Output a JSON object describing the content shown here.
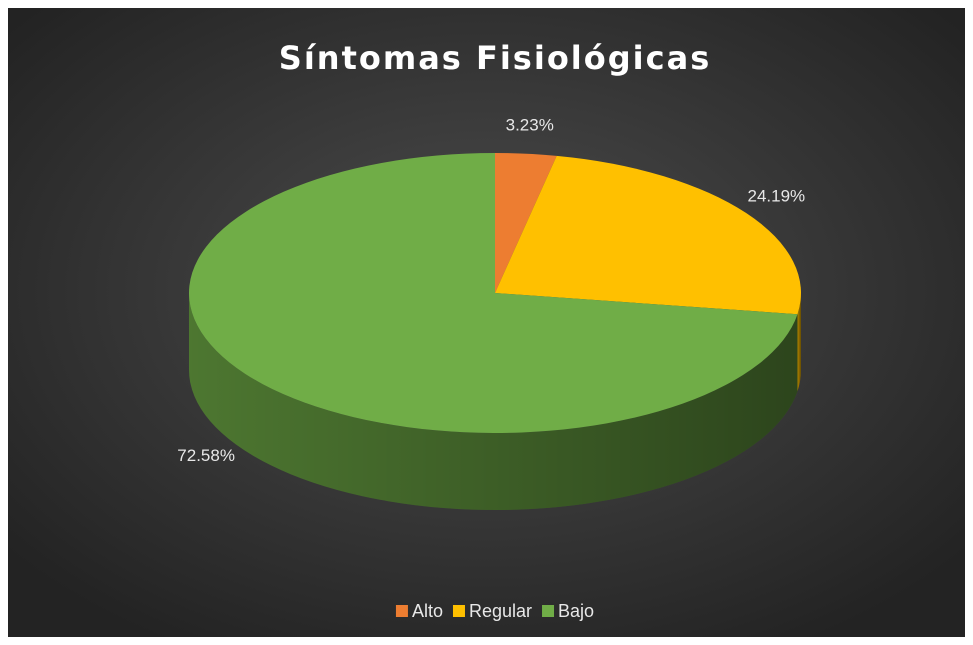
{
  "chart_data": {
    "type": "pie",
    "title": "Síntomas Fisiológicas",
    "categories": [
      "Alto",
      "Regular",
      "Bajo"
    ],
    "values": [
      3.23,
      24.19,
      72.58
    ],
    "value_labels": [
      "3.23%",
      "24.19%",
      "72.58%"
    ],
    "colors": [
      "#ed7d31",
      "#ffc000",
      "#70ad47"
    ],
    "legend": "bottom"
  }
}
